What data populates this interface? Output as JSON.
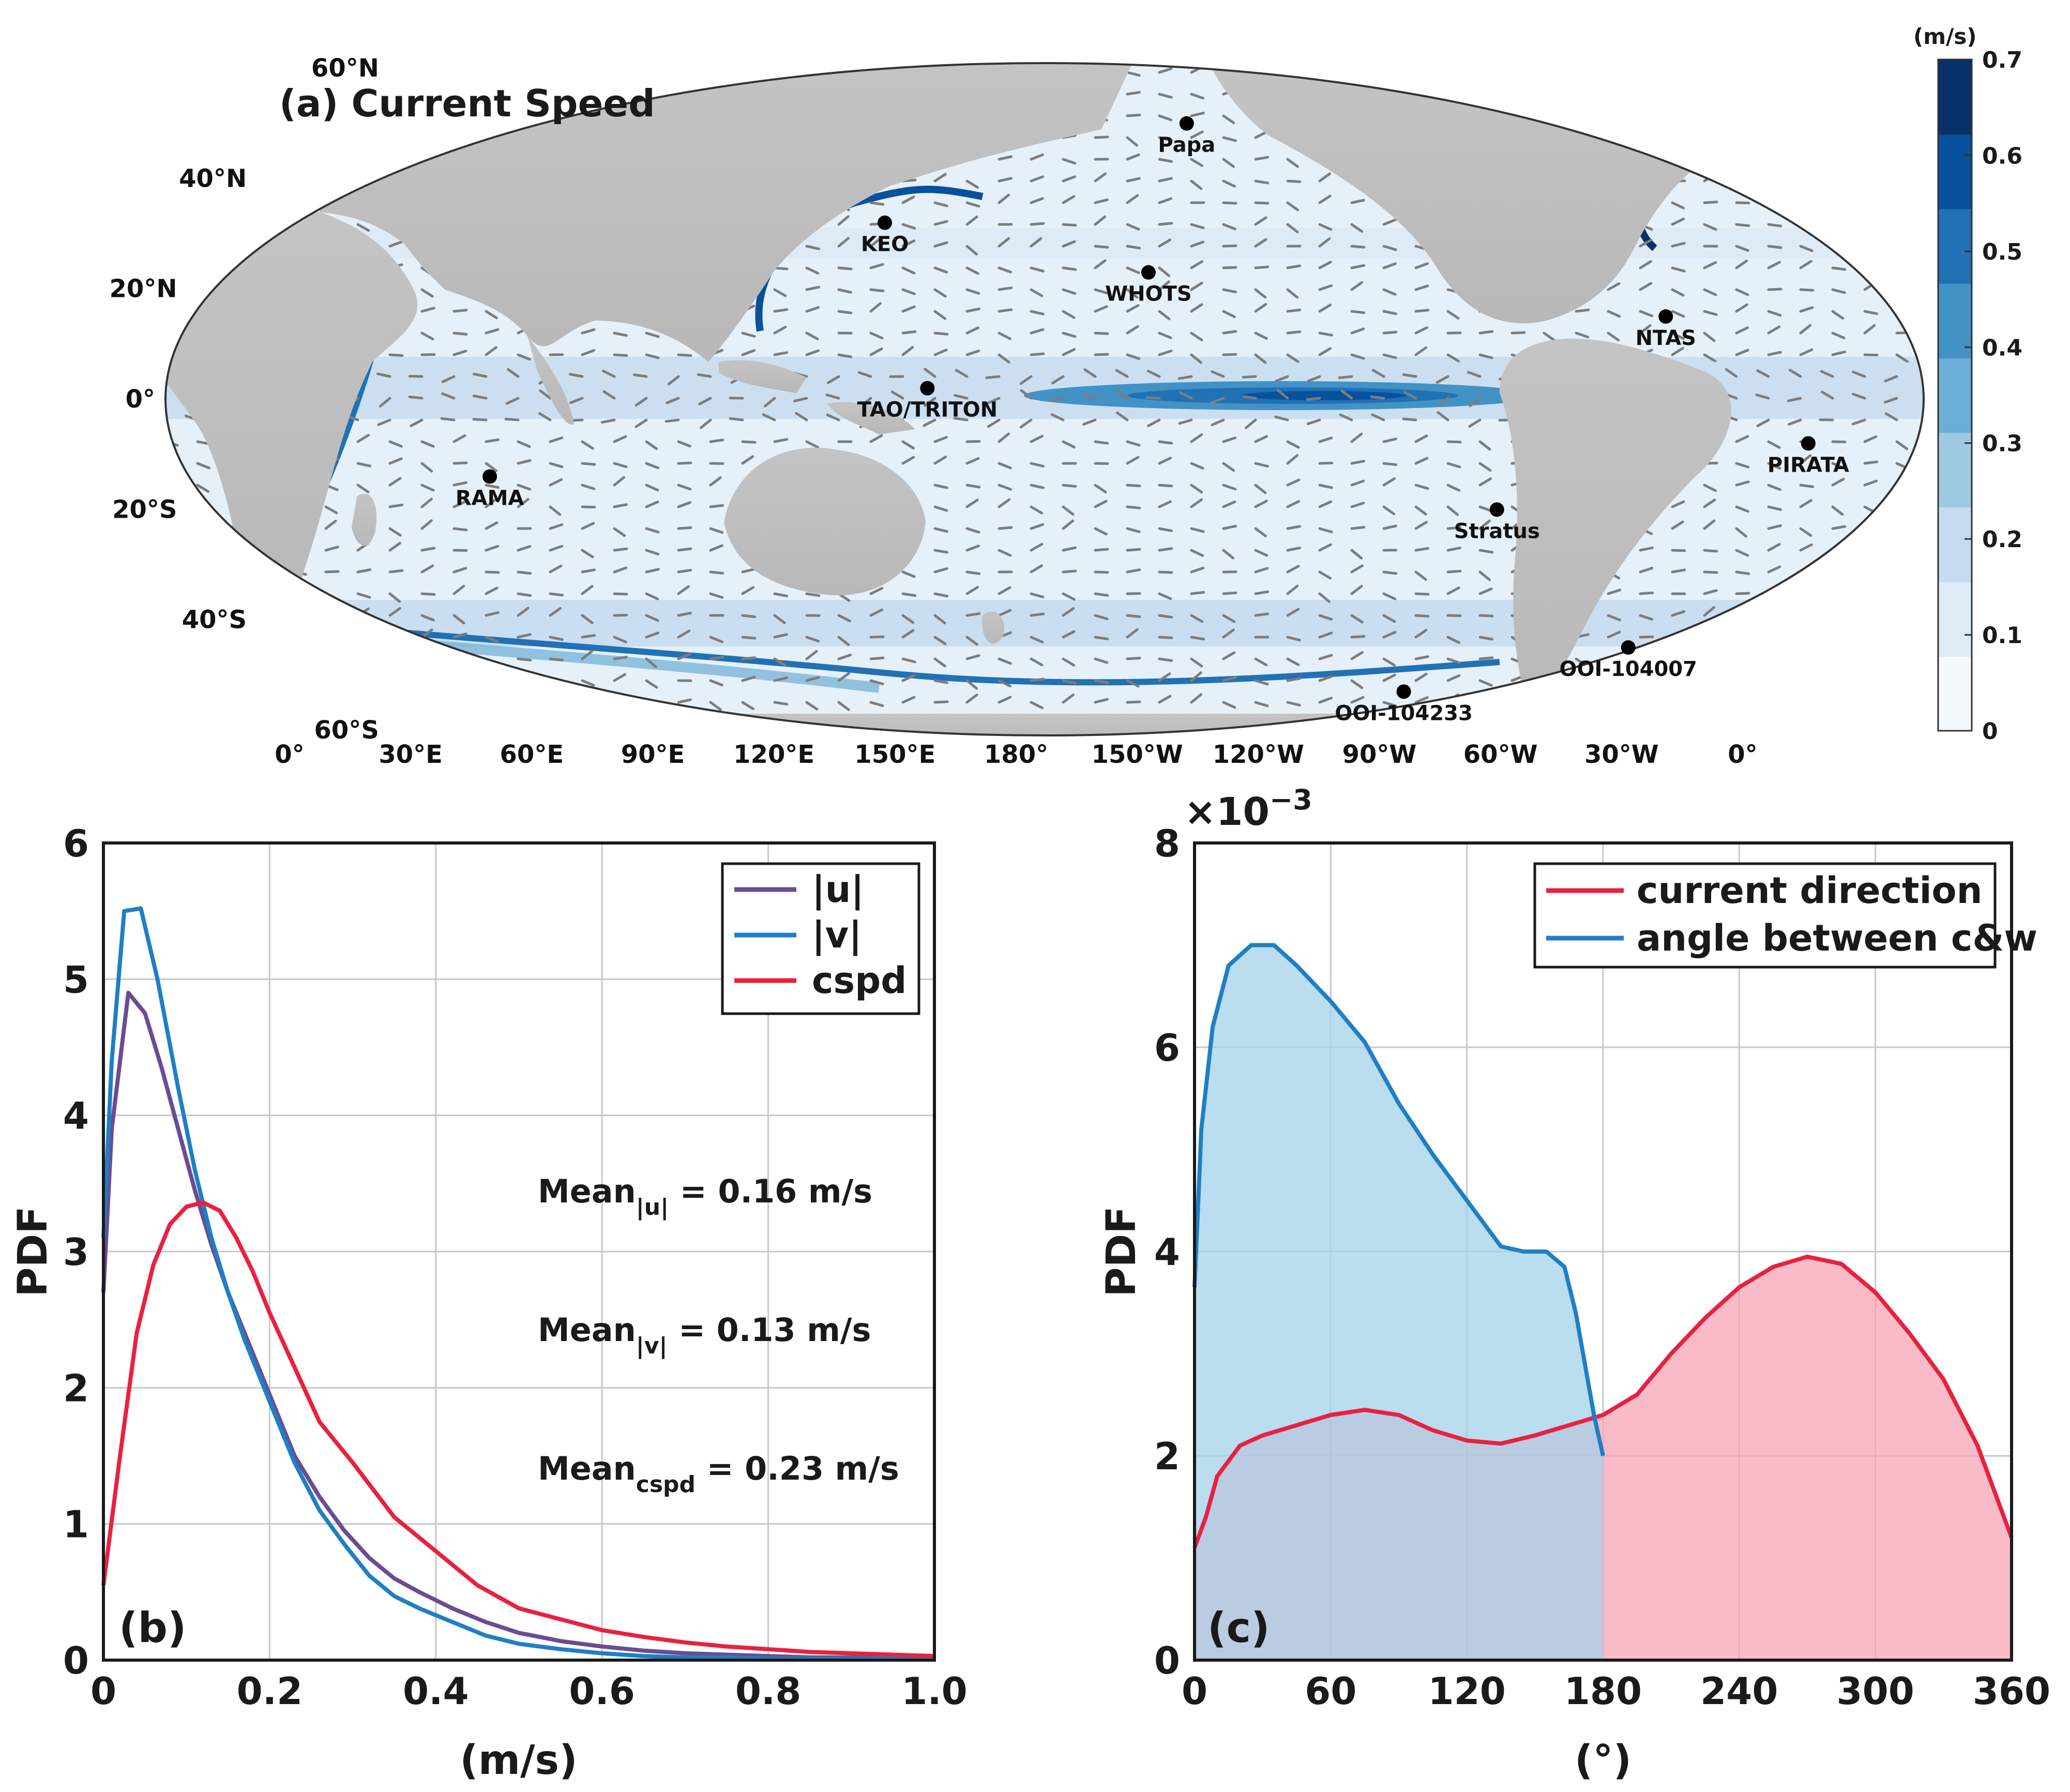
{
  "panel_a": {
    "title": "(a) Current Speed",
    "lat_labels": [
      "60°N",
      "40°N",
      "20°N",
      "0°",
      "20°S",
      "40°S",
      "60°S"
    ],
    "lon_labels": [
      "0°",
      "30°E",
      "60°E",
      "90°E",
      "120°E",
      "150°E",
      "180°",
      "150°W",
      "120°W",
      "90°W",
      "60°W",
      "30°W",
      "0°"
    ],
    "colorbar": {
      "unit": "(m/s)",
      "ticks": [
        "0",
        "0.1",
        "0.2",
        "0.3",
        "0.4",
        "0.5",
        "0.6",
        "0.7"
      ],
      "colors": [
        "#f4f9fd",
        "#deebf7",
        "#c6dbef",
        "#9ecae1",
        "#6baed6",
        "#4292c6",
        "#2171b5",
        "#08519c",
        "#08306b"
      ]
    },
    "stations": [
      {
        "label": "Papa",
        "lon": -145,
        "lat": 50
      },
      {
        "label": "KEO",
        "lon": 145,
        "lat": 32
      },
      {
        "label": "WHOTS",
        "lon": -158,
        "lat": 23
      },
      {
        "label": "NTAS",
        "lon": -51,
        "lat": 15
      },
      {
        "label": "TAO/TRITON",
        "lon": 156,
        "lat": 2
      },
      {
        "label": "RAMA",
        "lon": 65,
        "lat": -14
      },
      {
        "label": "PIRATA",
        "lon": -23,
        "lat": -8
      },
      {
        "label": "Stratus",
        "lon": -85,
        "lat": -20
      },
      {
        "label": "OOI-104233",
        "lon": -89,
        "lat": -53
      },
      {
        "label": "OOI-104007",
        "lon": -42,
        "lat": -45
      }
    ]
  },
  "chart_data": [
    {
      "type": "line",
      "panel_label": "(b)",
      "xlabel": "(m/s)",
      "ylabel": "PDF",
      "xlim": [
        0,
        1
      ],
      "ylim": [
        0,
        6
      ],
      "xticks": [
        "0",
        "0.2",
        "0.4",
        "0.6",
        "0.8",
        "1.0"
      ],
      "yticks": [
        "0",
        "1",
        "2",
        "3",
        "4",
        "5",
        "6"
      ],
      "grid": true,
      "legend_position": "top-right",
      "series": [
        {
          "name": "|u|",
          "color": "#6a4c93",
          "x": [
            0,
            0.01,
            0.03,
            0.05,
            0.07,
            0.09,
            0.11,
            0.13,
            0.15,
            0.17,
            0.2,
            0.23,
            0.26,
            0.29,
            0.32,
            0.35,
            0.38,
            0.42,
            0.46,
            0.5,
            0.55,
            0.6,
            0.65,
            0.7,
            0.75,
            0.8,
            0.85,
            0.9,
            0.95,
            1.0
          ],
          "values": [
            2.7,
            3.9,
            4.9,
            4.75,
            4.35,
            3.9,
            3.45,
            3.05,
            2.7,
            2.4,
            1.95,
            1.5,
            1.2,
            0.95,
            0.75,
            0.6,
            0.5,
            0.38,
            0.28,
            0.2,
            0.14,
            0.1,
            0.07,
            0.05,
            0.04,
            0.03,
            0.02,
            0.02,
            0.01,
            0.01
          ]
        },
        {
          "name": "|v|",
          "color": "#1f7fc4",
          "x": [
            0,
            0.01,
            0.025,
            0.045,
            0.065,
            0.09,
            0.11,
            0.13,
            0.15,
            0.17,
            0.2,
            0.23,
            0.26,
            0.29,
            0.32,
            0.35,
            0.38,
            0.42,
            0.46,
            0.5,
            0.55,
            0.6,
            0.65,
            0.7,
            0.75,
            0.8,
            0.9,
            1.0
          ],
          "values": [
            3.1,
            4.4,
            5.5,
            5.52,
            5.0,
            4.2,
            3.6,
            3.1,
            2.7,
            2.35,
            1.9,
            1.45,
            1.1,
            0.85,
            0.62,
            0.47,
            0.38,
            0.28,
            0.18,
            0.12,
            0.08,
            0.05,
            0.03,
            0.02,
            0.02,
            0.01,
            0.01,
            0.01
          ]
        },
        {
          "name": "cspd",
          "color": "#e8213f",
          "x": [
            0,
            0.02,
            0.04,
            0.06,
            0.08,
            0.1,
            0.12,
            0.14,
            0.16,
            0.18,
            0.2,
            0.23,
            0.26,
            0.3,
            0.35,
            0.4,
            0.45,
            0.5,
            0.55,
            0.6,
            0.65,
            0.7,
            0.75,
            0.8,
            0.85,
            0.9,
            0.95,
            1.0
          ],
          "values": [
            0.55,
            1.5,
            2.4,
            2.9,
            3.2,
            3.33,
            3.36,
            3.3,
            3.1,
            2.85,
            2.55,
            2.15,
            1.75,
            1.45,
            1.05,
            0.8,
            0.55,
            0.38,
            0.3,
            0.22,
            0.17,
            0.13,
            0.1,
            0.08,
            0.06,
            0.05,
            0.04,
            0.03
          ]
        }
      ],
      "annotations": [
        {
          "text": "Mean",
          "subscript": "|u|",
          "value": " = 0.16 m/s"
        },
        {
          "text": "Mean",
          "subscript": "|v|",
          "value": " = 0.13 m/s"
        },
        {
          "text": "Mean",
          "subscript": "cspd",
          "value": " = 0.23 m/s"
        }
      ]
    },
    {
      "type": "area",
      "panel_label": "(c)",
      "xlabel": "(°)",
      "ylabel": "PDF",
      "y_scale_label": "×10",
      "y_scale_exponent": "−3",
      "xlim": [
        0,
        360
      ],
      "ylim": [
        0,
        8
      ],
      "xticks": [
        "0",
        "60",
        "120",
        "180",
        "240",
        "300",
        "360"
      ],
      "yticks": [
        "0",
        "2",
        "4",
        "6",
        "8"
      ],
      "grid": true,
      "legend_position": "top-right",
      "series": [
        {
          "name": "current direction",
          "color": "#e8213f",
          "fill": "#f7a4b4",
          "x": [
            0,
            5,
            10,
            20,
            30,
            45,
            60,
            75,
            90,
            105,
            120,
            135,
            150,
            165,
            180,
            195,
            210,
            225,
            240,
            255,
            270,
            285,
            300,
            315,
            330,
            345,
            360
          ],
          "values": [
            1.1,
            1.4,
            1.8,
            2.1,
            2.2,
            2.3,
            2.4,
            2.45,
            2.4,
            2.25,
            2.15,
            2.12,
            2.2,
            2.3,
            2.4,
            2.6,
            3.0,
            3.35,
            3.65,
            3.85,
            3.95,
            3.88,
            3.6,
            3.2,
            2.75,
            2.1,
            1.2
          ]
        },
        {
          "name": "angle between c&w",
          "color": "#1f7fc4",
          "fill": "#a3d2ea",
          "x": [
            0,
            3,
            8,
            15,
            25,
            35,
            45,
            60,
            75,
            90,
            105,
            120,
            135,
            145,
            155,
            163,
            168,
            172,
            176,
            180
          ],
          "values": [
            3.65,
            5.2,
            6.2,
            6.8,
            7.0,
            7.0,
            6.8,
            6.45,
            6.05,
            5.45,
            4.95,
            4.5,
            4.05,
            4.0,
            4.0,
            3.85,
            3.4,
            2.9,
            2.4,
            2.0
          ]
        }
      ]
    }
  ]
}
